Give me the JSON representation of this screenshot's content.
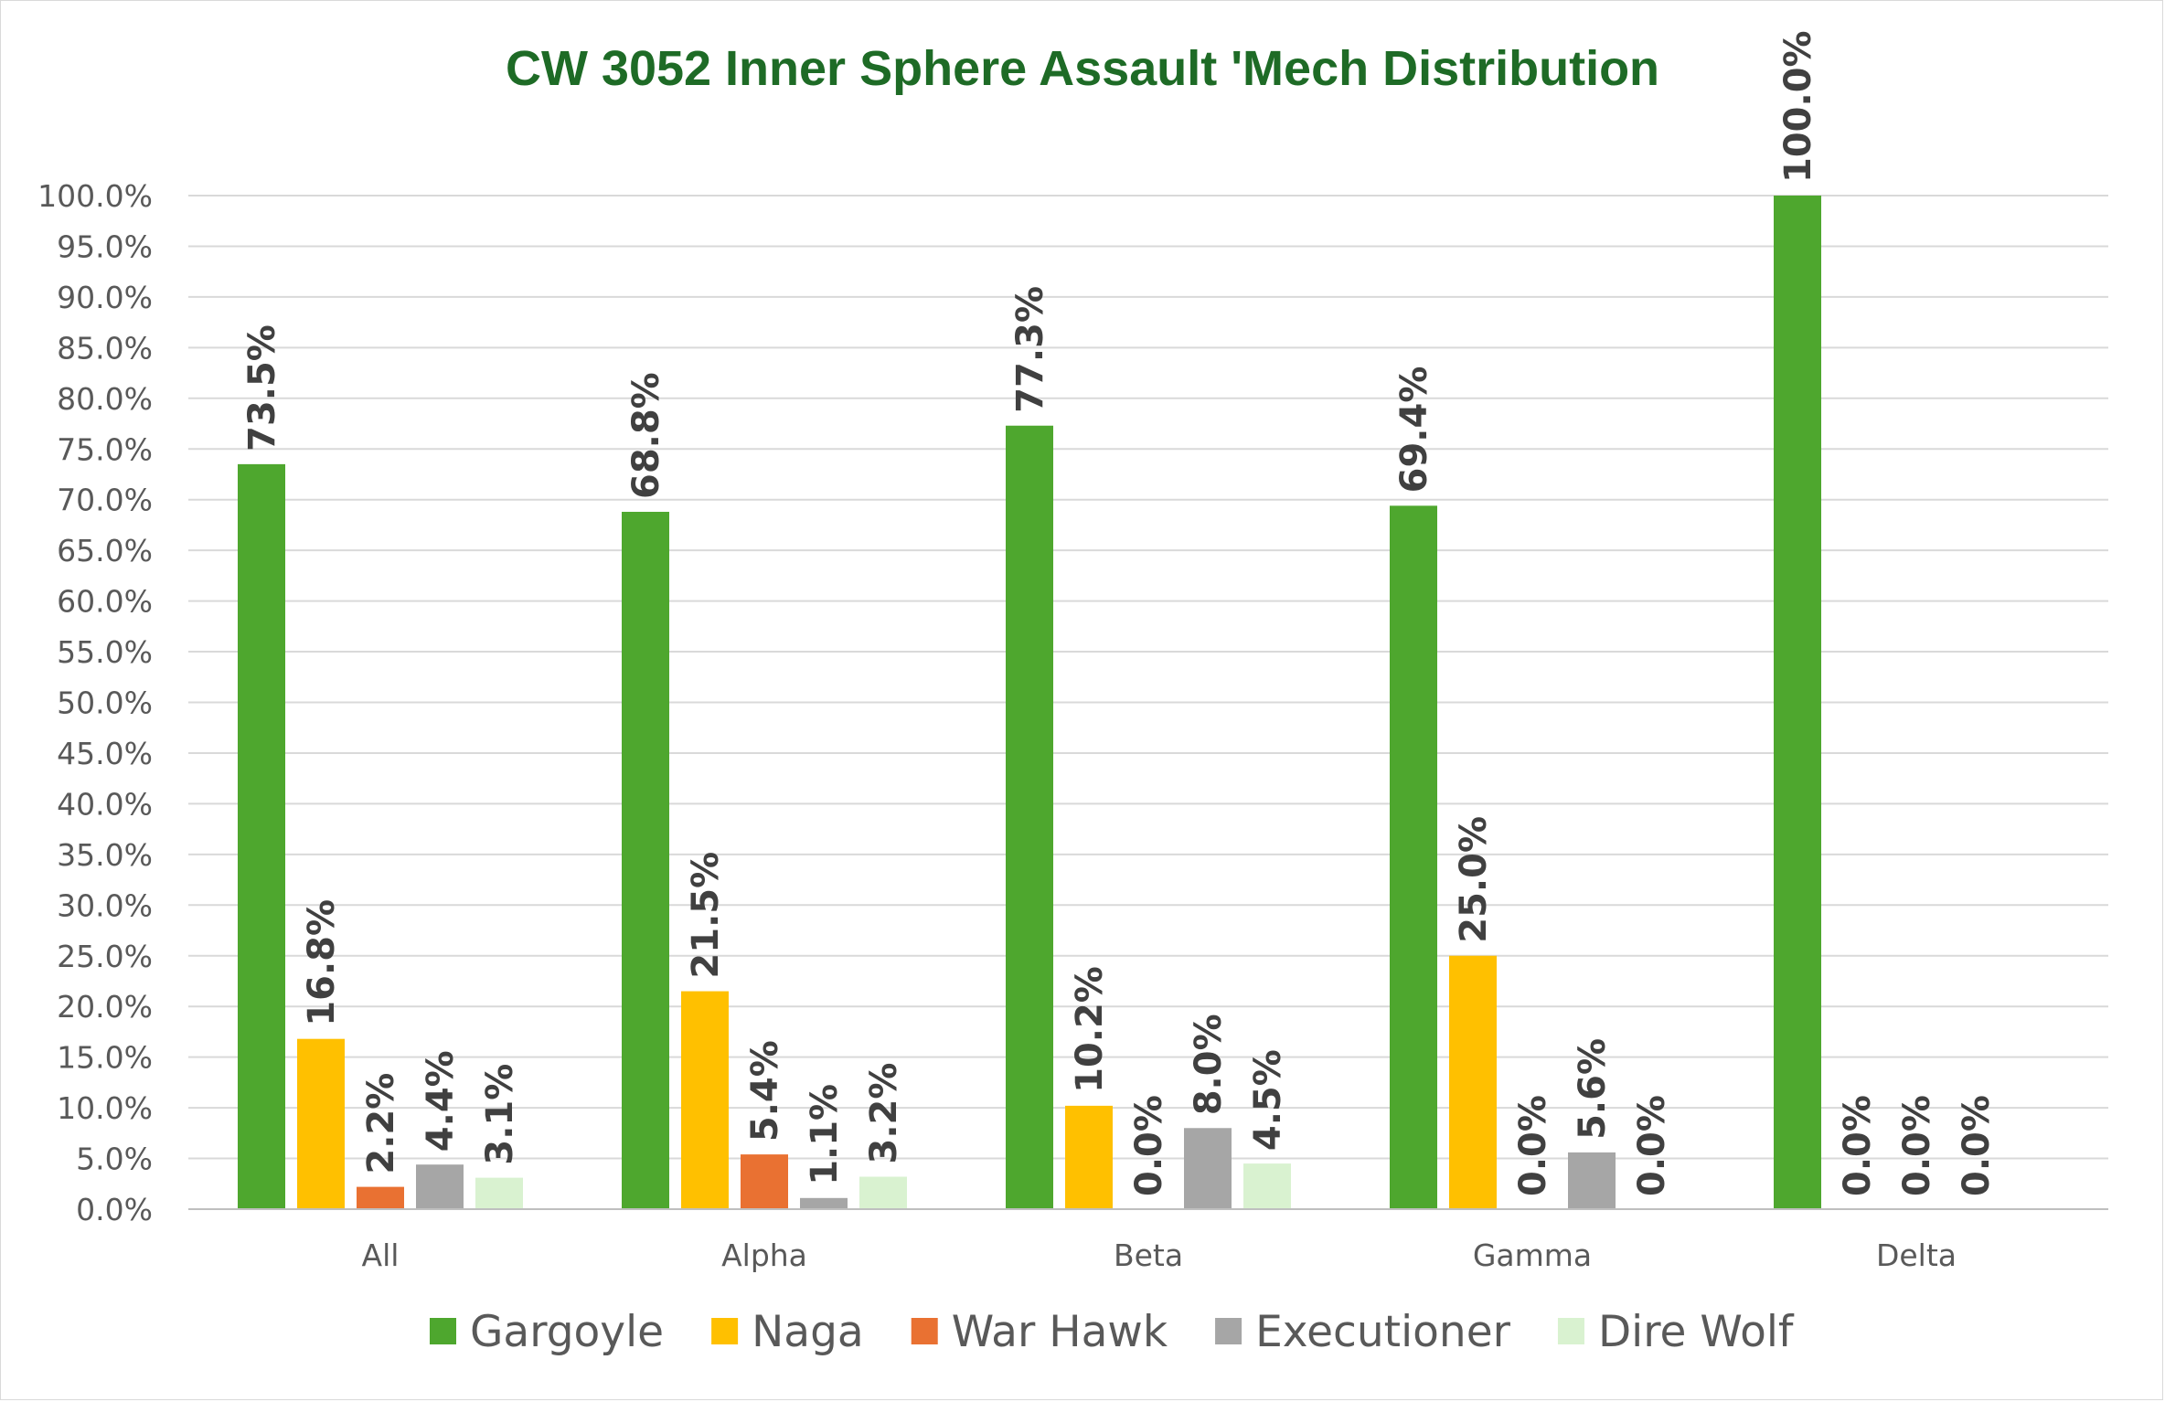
{
  "chart_data": {
    "type": "bar",
    "title": "CW 3052 Inner Sphere Assault 'Mech Distribution",
    "categories": [
      "All",
      "Alpha",
      "Beta",
      "Gamma",
      "Delta"
    ],
    "series": [
      {
        "name": "Gargoyle",
        "color": "#4ea72e",
        "values": [
          73.5,
          68.8,
          77.3,
          69.4,
          100.0
        ],
        "labels": [
          "73.5%",
          "68.8%",
          "77.3%",
          "69.4%",
          "100.0%"
        ]
      },
      {
        "name": "Naga",
        "color": "#ffc000",
        "values": [
          16.8,
          21.5,
          10.2,
          25.0,
          0.0
        ],
        "labels": [
          "16.8%",
          "21.5%",
          "10.2%",
          "25.0%",
          "0.0%"
        ]
      },
      {
        "name": "War Hawk",
        "color": "#e97132",
        "values": [
          2.2,
          5.4,
          0.0,
          0.0,
          0.0
        ],
        "labels": [
          "2.2%",
          "5.4%",
          "0.0%",
          "0.0%",
          "0.0%"
        ]
      },
      {
        "name": "Executioner",
        "color": "#a6a6a6",
        "values": [
          4.4,
          1.1,
          8.0,
          5.6,
          0.0
        ],
        "labels": [
          "4.4%",
          "1.1%",
          "8.0%",
          "5.6%",
          "0.0%"
        ]
      },
      {
        "name": "Dire Wolf",
        "color": "#d9f2d0",
        "values": [
          3.1,
          3.2,
          4.5,
          0.0,
          null
        ],
        "labels": [
          "3.1%",
          "3.2%",
          "4.5%",
          "0.0%",
          ""
        ]
      }
    ],
    "yticks": [
      "0.0%",
      "5.0%",
      "10.0%",
      "15.0%",
      "20.0%",
      "25.0%",
      "30.0%",
      "35.0%",
      "40.0%",
      "45.0%",
      "50.0%",
      "55.0%",
      "60.0%",
      "65.0%",
      "70.0%",
      "75.0%",
      "80.0%",
      "85.0%",
      "90.0%",
      "95.0%",
      "100.0%"
    ],
    "ylim": [
      0,
      100
    ],
    "xlabel": "",
    "ylabel": "",
    "grid": true,
    "legend_position": "bottom",
    "title_color": "#1e6b26"
  }
}
